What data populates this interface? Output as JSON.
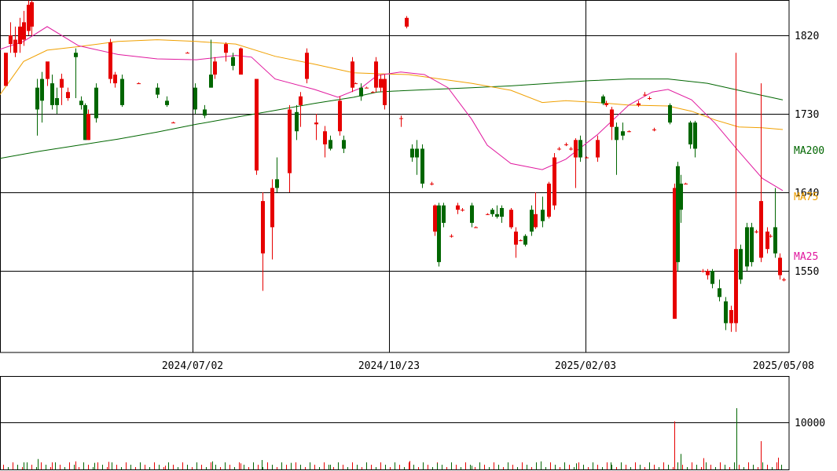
{
  "chart_data": [
    {
      "type": "candlestick",
      "title": "",
      "xlabel": "",
      "ylabel": "",
      "ylim": [
        1490,
        1860
      ],
      "y_ticks": [
        "1820",
        "1730",
        "1640",
        "1550"
      ],
      "x_ticks": [
        "2024/07/02",
        "2024/10/23",
        "2025/02/03",
        "2025/05/08"
      ],
      "up_color": "#e60000",
      "down_color": "#006600",
      "series": [
        {
          "name": "MA200",
          "color": "#006600",
          "values": [
            [
              0,
              1679
            ],
            [
              50,
              1687
            ],
            [
              100,
              1694
            ],
            [
              150,
              1701
            ],
            [
              200,
              1709
            ],
            [
              250,
              1718
            ],
            [
              300,
              1726
            ],
            [
              350,
              1734
            ],
            [
              400,
              1742
            ],
            [
              450,
              1749
            ],
            [
              480,
              1755
            ],
            [
              500,
              1756
            ],
            [
              550,
              1758
            ],
            [
              600,
              1760
            ],
            [
              650,
              1762
            ],
            [
              700,
              1765
            ],
            [
              750,
              1768
            ],
            [
              800,
              1770
            ],
            [
              850,
              1770
            ],
            [
              900,
              1765
            ],
            [
              950,
              1755
            ],
            [
              996,
              1746
            ]
          ]
        },
        {
          "name": "MA75",
          "color": "#f0a000",
          "values": [
            [
              0,
              1752
            ],
            [
              30,
              1790
            ],
            [
              60,
              1803
            ],
            [
              100,
              1807
            ],
            [
              150,
              1813
            ],
            [
              200,
              1815
            ],
            [
              250,
              1813
            ],
            [
              300,
              1810
            ],
            [
              350,
              1796
            ],
            [
              400,
              1787
            ],
            [
              450,
              1777
            ],
            [
              480,
              1776
            ],
            [
              520,
              1775
            ],
            [
              560,
              1770
            ],
            [
              600,
              1765
            ],
            [
              650,
              1757
            ],
            [
              690,
              1743
            ],
            [
              720,
              1745
            ],
            [
              760,
              1743
            ],
            [
              800,
              1740
            ],
            [
              850,
              1739
            ],
            [
              880,
              1733
            ],
            [
              910,
              1723
            ],
            [
              940,
              1715
            ],
            [
              970,
              1714
            ],
            [
              996,
              1712
            ]
          ]
        },
        {
          "name": "MA25",
          "color": "#e0189e",
          "values": [
            [
              0,
              1804
            ],
            [
              30,
              1813
            ],
            [
              60,
              1830
            ],
            [
              100,
              1808
            ],
            [
              150,
              1798
            ],
            [
              200,
              1793
            ],
            [
              250,
              1792
            ],
            [
              300,
              1797
            ],
            [
              320,
              1795
            ],
            [
              350,
              1770
            ],
            [
              400,
              1758
            ],
            [
              430,
              1749
            ],
            [
              460,
              1760
            ],
            [
              480,
              1774
            ],
            [
              510,
              1778
            ],
            [
              540,
              1775
            ],
            [
              570,
              1760
            ],
            [
              600,
              1724
            ],
            [
              620,
              1694
            ],
            [
              650,
              1673
            ],
            [
              690,
              1666
            ],
            [
              720,
              1678
            ],
            [
              760,
              1706
            ],
            [
              800,
              1740
            ],
            [
              830,
              1755
            ],
            [
              850,
              1758
            ],
            [
              880,
              1746
            ],
            [
              910,
              1719
            ],
            [
              940,
              1687
            ],
            [
              970,
              1656
            ],
            [
              996,
              1642
            ]
          ]
        }
      ]
    },
    {
      "type": "bar",
      "title": "",
      "ylabel": "",
      "ylim": [
        0,
        14000
      ],
      "y_ticks": [
        "10000"
      ],
      "values": [
        {
          "x": 30,
          "v": 1500,
          "c": "#006600"
        },
        {
          "x": 48,
          "v": 2200,
          "c": "#006600"
        },
        {
          "x": 66,
          "v": 1500,
          "c": "#e60000"
        },
        {
          "x": 96,
          "v": 1700,
          "c": "#e60000"
        },
        {
          "x": 120,
          "v": 1400,
          "c": "#006600"
        },
        {
          "x": 138,
          "v": 1600,
          "c": "#e60000"
        },
        {
          "x": 210,
          "v": 800,
          "c": "#e60000"
        },
        {
          "x": 270,
          "v": 1700,
          "c": "#006600"
        },
        {
          "x": 306,
          "v": 1300,
          "c": "#e60000"
        },
        {
          "x": 333,
          "v": 2000,
          "c": "#006600"
        },
        {
          "x": 370,
          "v": 1400,
          "c": "#006600"
        },
        {
          "x": 420,
          "v": 1000,
          "c": "#006600"
        },
        {
          "x": 521,
          "v": 1800,
          "c": "#e60000"
        },
        {
          "x": 556,
          "v": 1300,
          "c": "#006600"
        },
        {
          "x": 600,
          "v": 800,
          "c": "#006600"
        },
        {
          "x": 688,
          "v": 1700,
          "c": "#006600"
        },
        {
          "x": 733,
          "v": 1300,
          "c": "#006600"
        },
        {
          "x": 777,
          "v": 1500,
          "c": "#006600"
        },
        {
          "x": 858,
          "v": 10200,
          "c": "#e60000"
        },
        {
          "x": 866,
          "v": 3300,
          "c": "#006600"
        },
        {
          "x": 895,
          "v": 2400,
          "c": "#e60000"
        },
        {
          "x": 937,
          "v": 13000,
          "c": "#006600"
        },
        {
          "x": 968,
          "v": 6000,
          "c": "#e60000"
        },
        {
          "x": 990,
          "v": 2500,
          "c": "#e60000"
        }
      ]
    }
  ]
}
